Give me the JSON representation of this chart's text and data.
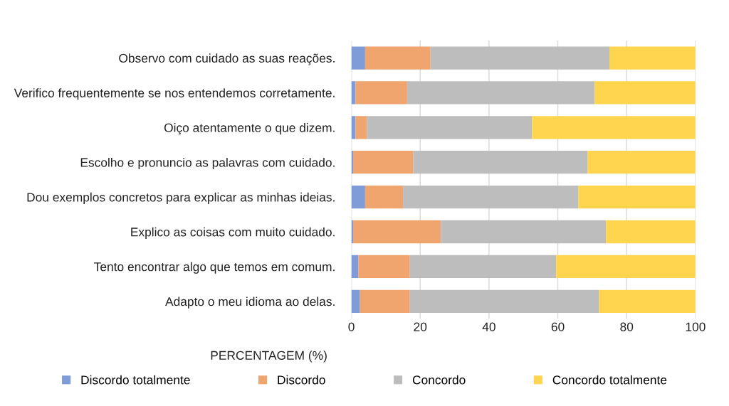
{
  "chart_data": {
    "type": "bar",
    "orientation": "horizontal",
    "stacked": true,
    "xlabel": "PERCENTAGEM (%)",
    "categories": [
      "Observo com cuidado as suas reações.",
      "Verifico frequentemente se nos entendemos corretamente.",
      "Oiço atentamente o que dizem.",
      "Escolho e pronuncio as palavras com cuidado.",
      "Dou exemplos concretos para explicar as minhas ideias.",
      "Explico as coisas com muito cuidado.",
      "Tento encontrar algo que temos em comum.",
      "Adapto o meu idioma ao delas."
    ],
    "series": [
      {
        "name": "Discordo totalmente",
        "color": "#7f9bd8",
        "values": [
          4,
          1.2,
          1.2,
          0.5,
          4,
          0.5,
          2,
          2.5
        ]
      },
      {
        "name": "Discordo",
        "color": "#f0a46e",
        "values": [
          19,
          15,
          3.3,
          17.5,
          11,
          25.5,
          15,
          14.5
        ]
      },
      {
        "name": "Concordo",
        "color": "#bdbdbd",
        "values": [
          52,
          54.5,
          48,
          50.7,
          51,
          48,
          42.5,
          55
        ]
      },
      {
        "name": "Concordo totalmente",
        "color": "#ffd44f",
        "values": [
          25,
          29.3,
          47.5,
          31.3,
          34,
          26,
          40.5,
          28
        ]
      }
    ],
    "xlim": [
      0,
      100
    ],
    "xticks": [
      0,
      20,
      40,
      60,
      80,
      100
    ],
    "grid": "x",
    "legend": "bottom"
  }
}
